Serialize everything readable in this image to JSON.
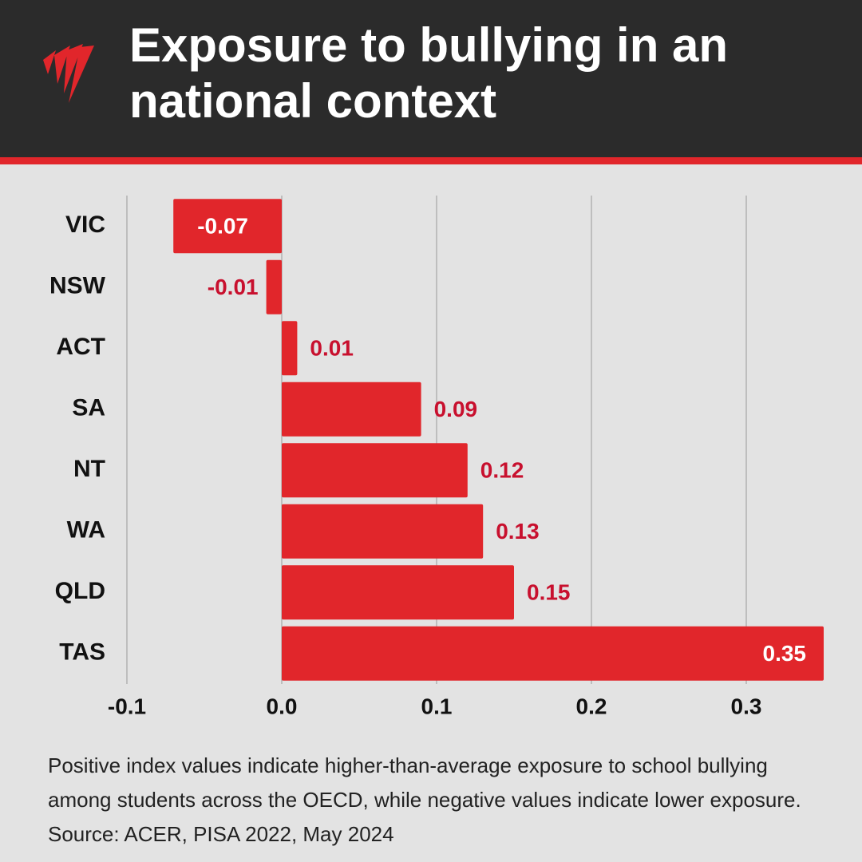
{
  "chart_data": {
    "type": "bar",
    "orientation": "horizontal",
    "title": "Exposure to bullying in an national context",
    "categories": [
      "VIC",
      "NSW",
      "ACT",
      "SA",
      "NT",
      "WA",
      "QLD",
      "TAS"
    ],
    "values": [
      -0.07,
      -0.01,
      0.01,
      0.09,
      0.12,
      0.13,
      0.15,
      0.35
    ],
    "color": "#e1262b",
    "xlim": [
      -0.1,
      0.35
    ],
    "xticks": [
      -0.1,
      {
        "value": 0,
        "label": "0.0"
      },
      0.1,
      0.2,
      0.3
    ],
    "grid": true,
    "note": "Positive index values indicate higher-than-average exposure to school bullying among students across the OECD, while negative values indicate lower exposure.  Source: ACER, PISA 2022, May 2024"
  }
}
